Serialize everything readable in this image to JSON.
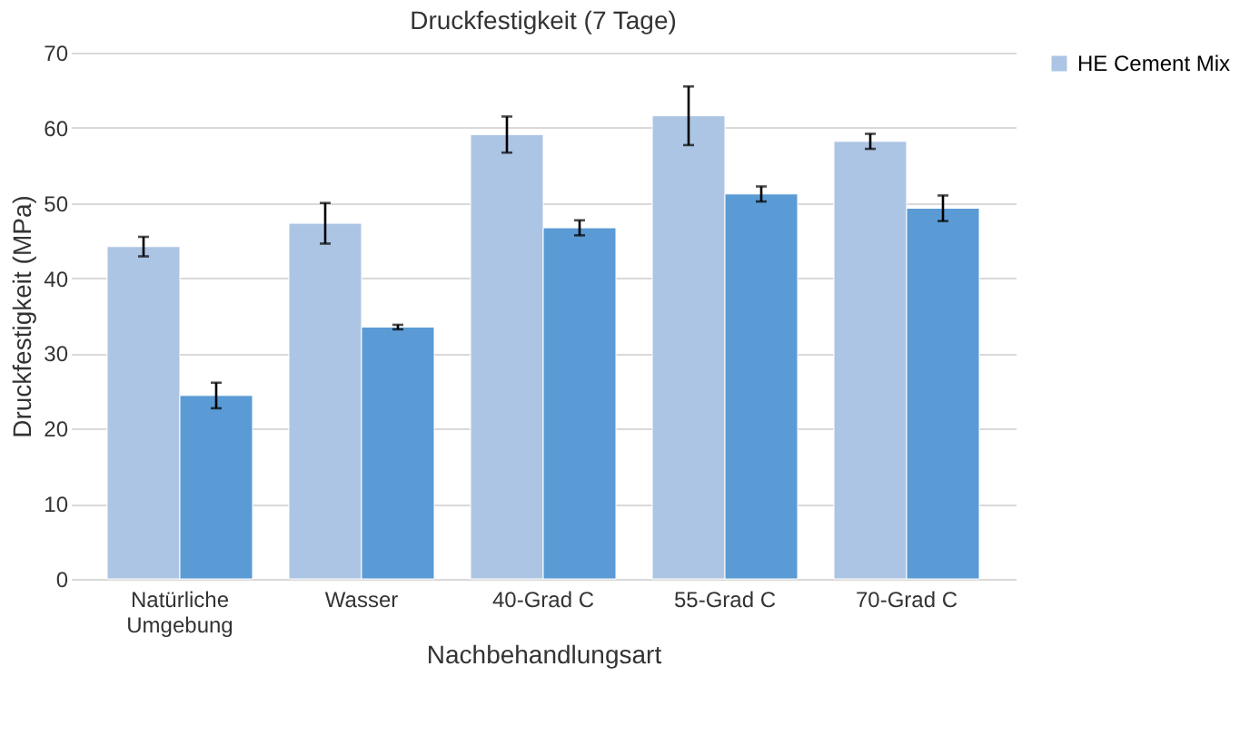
{
  "chart_data": {
    "type": "bar",
    "title": "Druckfestigkeit (7 Tage)",
    "xlabel": "Nachbehandlungsart",
    "ylabel": "Druckfestigkeit (MPa)",
    "categories": [
      "Natürliche\nUmgebung",
      "Wasser",
      "40-Grad C",
      "55-Grad C",
      "70-Grad C"
    ],
    "series": [
      {
        "name": "HE Cement Mix",
        "color": "#adc5e4",
        "values": [
          44.2,
          47.3,
          59.1,
          61.6,
          58.2
        ],
        "errors": [
          1.3,
          2.7,
          2.4,
          3.9,
          1.0
        ]
      },
      {
        "color": "#5b9bd5",
        "values": [
          24.4,
          33.5,
          46.7,
          51.2,
          49.3
        ],
        "errors": [
          1.7,
          0.3,
          1.0,
          1.0,
          1.7
        ]
      }
    ],
    "ylim": [
      0,
      70
    ],
    "yticks": [
      0,
      10,
      20,
      30,
      40,
      50,
      60,
      70
    ],
    "grid": "y",
    "legend": "right"
  }
}
